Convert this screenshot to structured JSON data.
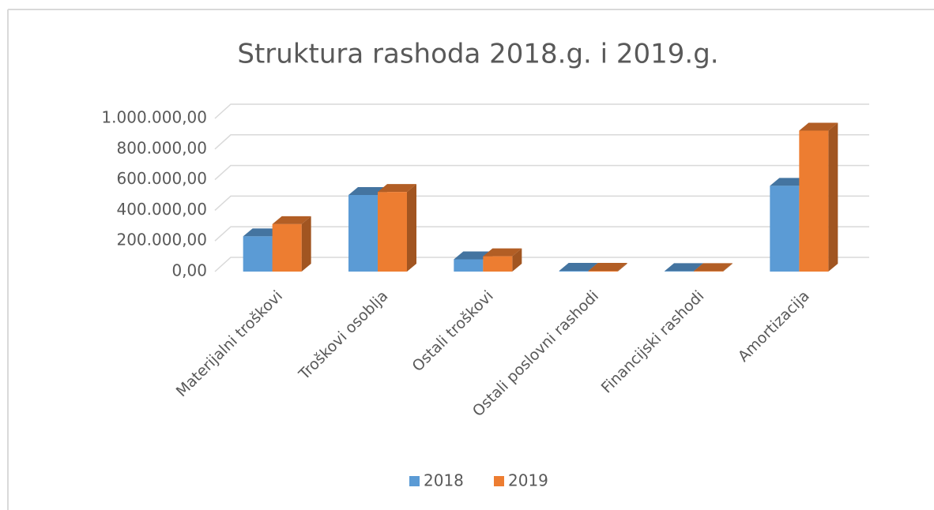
{
  "chart_data": {
    "type": "bar3d",
    "title": "Struktura rashoda 2018.g. i 2019.g.",
    "categories": [
      "Materijalni troškovi",
      "Troškovi osoblja",
      "Ostali troškovi",
      "Ostali poslovni rashodi",
      "Financijski rashodi",
      "Amortizacija"
    ],
    "series": [
      {
        "name": "2018",
        "color": "#5b9bd5",
        "values": [
          230000,
          500000,
          80000,
          5000,
          3000,
          560000
        ]
      },
      {
        "name": "2019",
        "color": "#ed7d31",
        "values": [
          310000,
          520000,
          100000,
          5000,
          3000,
          920000
        ]
      }
    ],
    "ylim": [
      0,
      1000000
    ],
    "yticks": [
      {
        "value": 0,
        "label": "0,00"
      },
      {
        "value": 200000,
        "label": "200.000,00"
      },
      {
        "value": 400000,
        "label": "400.000,00"
      },
      {
        "value": 600000,
        "label": "600.000,00"
      },
      {
        "value": 800000,
        "label": "800.000,00"
      },
      {
        "value": 1000000,
        "label": "1.000.000,00"
      }
    ],
    "grid": true,
    "legend": "bottom"
  }
}
